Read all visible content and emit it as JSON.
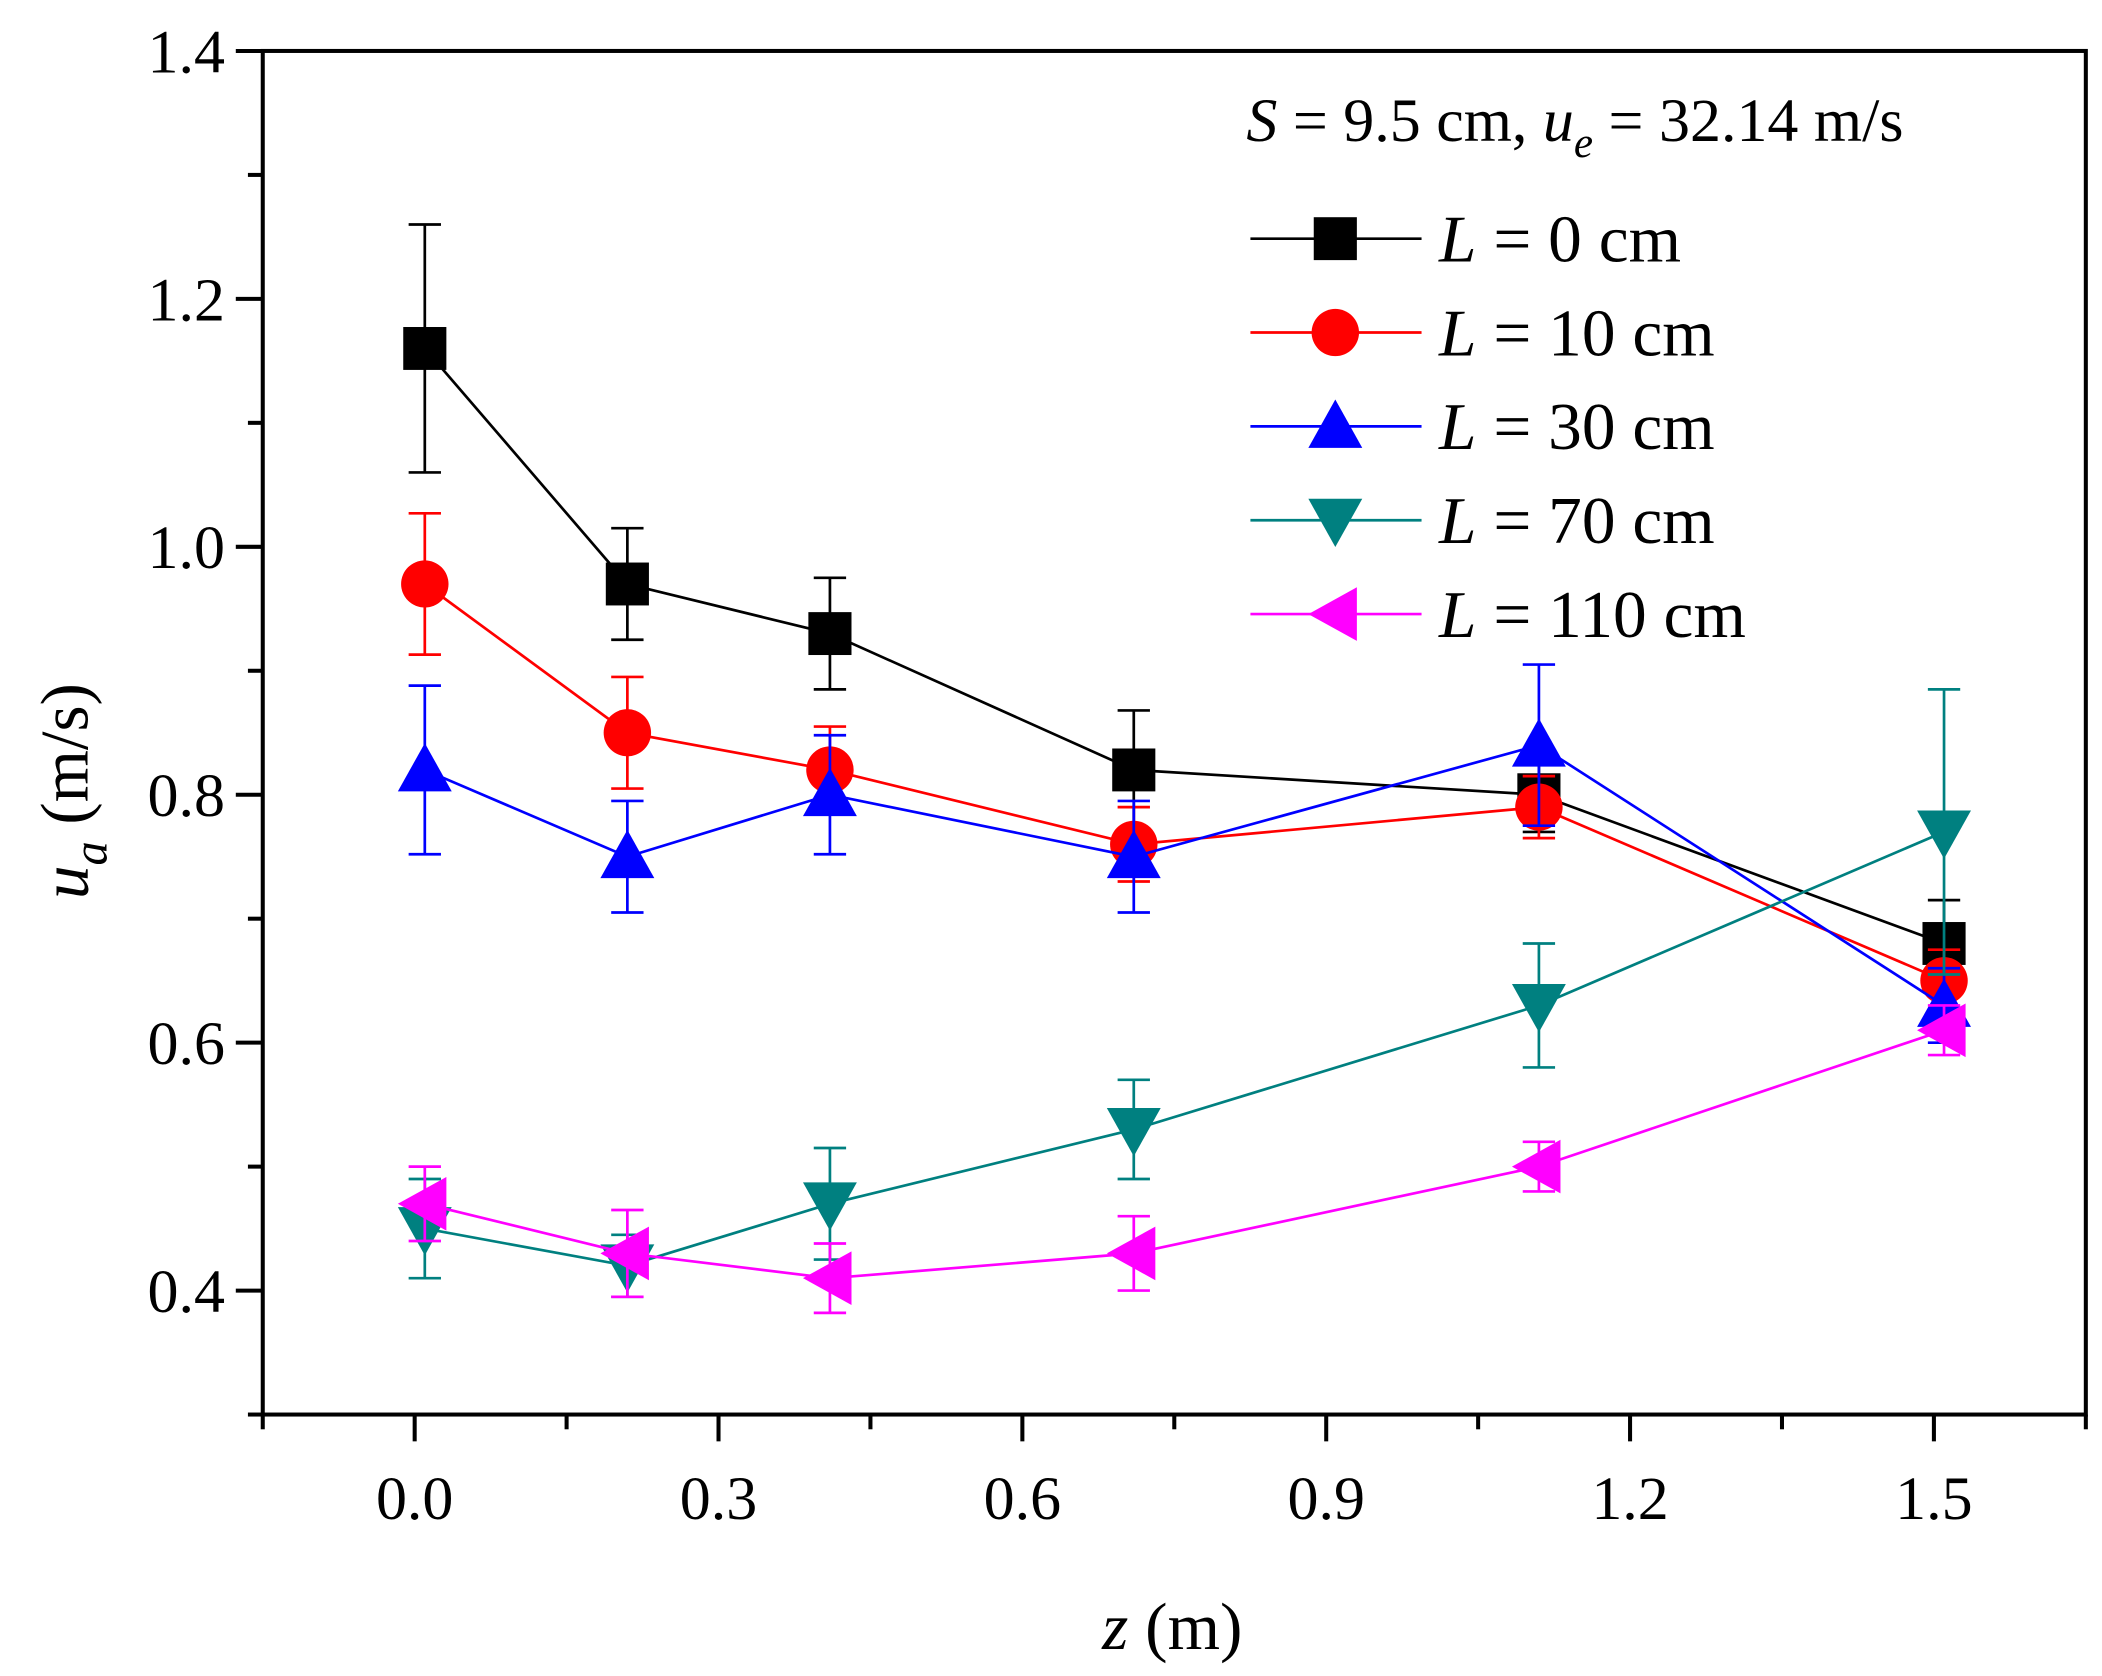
{
  "chart_data": {
    "type": "line",
    "title": "",
    "annotation": {
      "S_var": "S",
      "S_text": " = 9.5 cm, ",
      "u_var": "u",
      "u_sub": "e",
      "u_text": " = 32.14 m/s"
    },
    "xlabel": {
      "var": "z",
      "unit": " (m)"
    },
    "ylabel": {
      "var": "u",
      "sub": "a",
      "unit": " (m/s)"
    },
    "xlim": [
      -0.15,
      1.65
    ],
    "ylim": [
      0.3,
      1.4
    ],
    "xticks": [
      "0.0",
      "0.3",
      "0.6",
      "0.9",
      "1.2",
      "1.5"
    ],
    "xtick_values": [
      0.0,
      0.3,
      0.6,
      0.9,
      1.2,
      1.5
    ],
    "yticks": [
      "0.4",
      "0.6",
      "0.8",
      "1.0",
      "1.2",
      "1.4"
    ],
    "ytick_values": [
      0.4,
      0.6,
      0.8,
      1.0,
      1.2,
      1.4
    ],
    "legend_placement": "top-right",
    "x": [
      0.01,
      0.21,
      0.41,
      0.71,
      1.11,
      1.51
    ],
    "series": [
      {
        "name": "L = 0 cm",
        "var": "L",
        "label": " = 0 cm",
        "color": "#000000",
        "marker": "square",
        "values": [
          1.16,
          0.97,
          0.93,
          0.82,
          0.8,
          0.68
        ],
        "errors": [
          0.1,
          0.045,
          0.045,
          0.048,
          0.03,
          0.035
        ]
      },
      {
        "name": "L = 10 cm",
        "var": "L",
        "label": " = 10 cm",
        "color": "#ff0000",
        "marker": "circle",
        "values": [
          0.97,
          0.85,
          0.82,
          0.76,
          0.79,
          0.65
        ],
        "errors": [
          0.057,
          0.045,
          0.035,
          0.03,
          0.025,
          0.025
        ]
      },
      {
        "name": "L = 30 cm",
        "var": "L",
        "label": " = 30 cm",
        "color": "#0000ff",
        "marker": "triangle-up",
        "values": [
          0.82,
          0.75,
          0.8,
          0.75,
          0.84,
          0.63
        ],
        "errors": [
          0.068,
          0.045,
          0.048,
          0.045,
          0.065,
          0.03
        ]
      },
      {
        "name": "L = 70 cm",
        "var": "L",
        "label": " = 70 cm",
        "color": "#008080",
        "marker": "triangle-down",
        "values": [
          0.45,
          0.42,
          0.47,
          0.53,
          0.63,
          0.77
        ],
        "errors": [
          0.04,
          0.025,
          0.045,
          0.04,
          0.05,
          0.115
        ]
      },
      {
        "name": "L = 110 cm",
        "var": "L",
        "label": " = 110 cm",
        "color": "#ff00ff",
        "marker": "triangle-left",
        "values": [
          0.47,
          0.43,
          0.41,
          0.43,
          0.5,
          0.61
        ],
        "errors": [
          0.03,
          0.035,
          0.028,
          0.03,
          0.02,
          0.02
        ]
      }
    ]
  }
}
